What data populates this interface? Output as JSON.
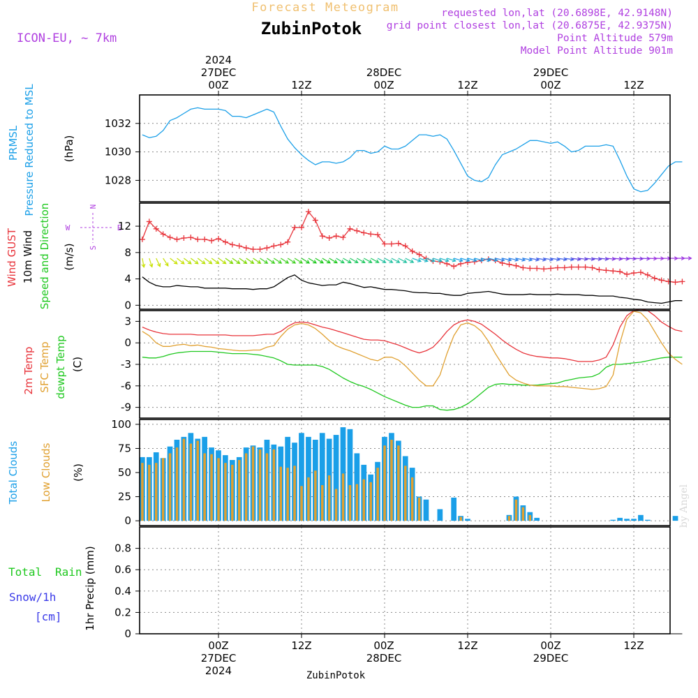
{
  "header": {
    "title": "Forecast Meteogram",
    "location": "ZubinPotok",
    "model": "ICON-EU, ~ 7km",
    "requested": "requested lon,lat (20.6898E, 42.9148N)",
    "grid_point": "grid point closest lon,lat (20.6875E, 42.9375N)",
    "point_altitude": "Point Altitude 579m",
    "model_altitude": "Model Point Altitude 901m",
    "watermark": "by Angel",
    "footer_location": "ZubinPotok"
  },
  "colors": {
    "cyan": "#1a9fe8",
    "red": "#e8333a",
    "orange": "#e0a030",
    "green": "#1ec81e",
    "purple": "#b040e0",
    "blue": "#3a3ae8",
    "title_orange": "#f0c070"
  },
  "time_axis": {
    "hour_ticks": [
      "00Z",
      "12Z",
      "00Z",
      "12Z",
      "00Z",
      "12Z"
    ],
    "date_top": [
      "27DEC",
      "28DEC",
      "29DEC"
    ],
    "year_top": "2024",
    "date_bottom": [
      "27DEC",
      "28DEC",
      "29DEC"
    ],
    "year_bottom": "2024"
  },
  "panels": {
    "pressure": {
      "label1": "PRMSL",
      "label2": "Pressure Reduced to MSL",
      "unit": "(hPa)"
    },
    "wind": {
      "label_gust": "Wind GUST",
      "label_wind": "10m Wind",
      "label_dir": "Speed and Direction",
      "unit": "(m/s)",
      "compass": [
        "N",
        "S",
        "W",
        "E"
      ]
    },
    "temp": {
      "label_2m": "2m Temp",
      "label_sfc": "SFC Temp",
      "label_dew": "dewpt Temp",
      "unit": "(C)"
    },
    "clouds": {
      "label_total": "Total Clouds",
      "label_low": "Low Clouds",
      "unit": "(%)"
    },
    "precip": {
      "label_total": "Total",
      "label_rain": "Rain",
      "label_snow": "Snow/1h",
      "label_cm": "[cm]",
      "unit": "1hr Precip (mm)"
    }
  },
  "chart_data": [
    {
      "type": "line",
      "title": "PRMSL Pressure Reduced to MSL",
      "ylabel": "(hPa)",
      "x_hours_from_00Z_27DEC": [
        -11,
        -10,
        -9,
        -8,
        -7,
        -6,
        -5,
        -4,
        -3,
        -2,
        -1,
        0,
        1,
        2,
        3,
        4,
        5,
        6,
        7,
        8,
        9,
        10,
        11,
        12,
        13,
        14,
        15,
        16,
        17,
        18,
        19,
        20,
        21,
        22,
        23,
        24,
        25,
        26,
        27,
        28,
        29,
        30,
        31,
        32,
        33,
        34,
        35,
        36,
        37,
        38,
        39,
        40,
        41,
        42,
        43,
        44,
        45,
        46,
        47,
        48,
        49,
        50,
        51,
        52,
        53,
        54,
        55,
        56,
        57,
        58,
        59,
        60,
        61,
        62,
        63,
        64,
        65,
        66,
        67
      ],
      "series": [
        {
          "name": "PRMSL",
          "values": [
            1031.2,
            1031.0,
            1031.1,
            1031.5,
            1032.2,
            1032.4,
            1032.7,
            1033.0,
            1033.1,
            1033.0,
            1033.0,
            1033.0,
            1032.9,
            1032.5,
            1032.5,
            1032.4,
            1032.6,
            1032.8,
            1033.0,
            1032.8,
            1031.8,
            1030.9,
            1030.3,
            1029.8,
            1029.4,
            1029.1,
            1029.3,
            1029.3,
            1029.2,
            1029.3,
            1029.6,
            1030.1,
            1030.1,
            1029.9,
            1030.0,
            1030.4,
            1030.2,
            1030.2,
            1030.4,
            1030.8,
            1031.2,
            1031.2,
            1031.1,
            1031.2,
            1030.9,
            1030.1,
            1029.2,
            1028.3,
            1028.0,
            1027.9,
            1028.2,
            1029.1,
            1029.8,
            1030.0,
            1030.2,
            1030.5,
            1030.8,
            1030.8,
            1030.7,
            1030.6,
            1030.7,
            1030.4,
            1030.0,
            1030.1,
            1030.4,
            1030.4,
            1030.4,
            1030.5,
            1030.4,
            1029.4,
            1028.3,
            1027.4,
            1027.2,
            1027.3,
            1027.8,
            1028.4,
            1029.0,
            1029.3,
            1029.3
          ]
        }
      ],
      "ylim": [
        1026.5,
        1034.0
      ],
      "yticks": [
        1028,
        1030,
        1032
      ]
    },
    {
      "type": "line",
      "title": "Wind GUST / 10m Wind Speed and Direction",
      "ylabel": "(m/s)",
      "series": [
        {
          "name": "Wind GUST",
          "values": [
            10.0,
            12.7,
            11.6,
            10.8,
            10.3,
            10.0,
            10.2,
            10.3,
            10.0,
            10.0,
            9.8,
            10.1,
            9.6,
            9.2,
            9.0,
            8.7,
            8.5,
            8.5,
            8.7,
            9.0,
            9.2,
            9.6,
            11.8,
            11.8,
            14.2,
            12.9,
            10.5,
            10.2,
            10.5,
            10.3,
            11.6,
            11.3,
            11.0,
            10.8,
            10.7,
            9.3,
            9.3,
            9.4,
            9.0,
            8.2,
            7.7,
            7.1,
            6.7,
            6.6,
            6.3,
            5.9,
            6.3,
            6.5,
            6.6,
            6.8,
            7.0,
            6.8,
            6.4,
            6.2,
            6.0,
            5.7,
            5.6,
            5.6,
            5.5,
            5.6,
            5.7,
            5.7,
            5.8,
            5.8,
            5.8,
            5.7,
            5.4,
            5.3,
            5.2,
            5.1,
            4.7,
            4.9,
            5.0,
            4.6,
            4.1,
            3.8,
            3.6,
            3.5,
            3.6
          ]
        },
        {
          "name": "10m Wind",
          "values": [
            4.3,
            3.5,
            3.0,
            2.8,
            2.8,
            3.0,
            2.9,
            2.8,
            2.8,
            2.6,
            2.6,
            2.6,
            2.6,
            2.5,
            2.5,
            2.5,
            2.4,
            2.5,
            2.5,
            2.8,
            3.5,
            4.2,
            4.6,
            3.8,
            3.4,
            3.2,
            3.0,
            3.1,
            3.1,
            3.5,
            3.3,
            3.0,
            2.7,
            2.8,
            2.6,
            2.4,
            2.4,
            2.3,
            2.2,
            2.0,
            1.9,
            1.9,
            1.8,
            1.8,
            1.6,
            1.5,
            1.5,
            1.8,
            1.9,
            2.0,
            2.1,
            1.9,
            1.7,
            1.6,
            1.6,
            1.6,
            1.7,
            1.6,
            1.6,
            1.6,
            1.7,
            1.6,
            1.6,
            1.6,
            1.5,
            1.5,
            1.4,
            1.4,
            1.4,
            1.2,
            1.1,
            0.9,
            0.8,
            0.5,
            0.4,
            0.3,
            0.5,
            0.7,
            0.7
          ]
        }
      ],
      "ylim": [
        -0.6,
        15.5
      ],
      "yticks": [
        0,
        4,
        8,
        12
      ]
    },
    {
      "type": "line",
      "title": "2m Temp / SFC Temp / dewpt Temp",
      "ylabel": "(C)",
      "series": [
        {
          "name": "2m Temp",
          "values": [
            2.2,
            1.8,
            1.5,
            1.3,
            1.2,
            1.2,
            1.2,
            1.2,
            1.1,
            1.1,
            1.1,
            1.1,
            1.1,
            1.0,
            1.0,
            1.0,
            1.0,
            1.1,
            1.2,
            1.2,
            1.6,
            2.3,
            2.8,
            2.9,
            2.8,
            2.5,
            2.2,
            2.0,
            1.7,
            1.4,
            1.1,
            0.8,
            0.5,
            0.4,
            0.4,
            0.3,
            0.0,
            -0.3,
            -0.7,
            -1.1,
            -1.4,
            -1.1,
            -0.6,
            0.4,
            1.6,
            2.5,
            3.0,
            3.2,
            3.0,
            2.6,
            1.9,
            1.2,
            0.4,
            -0.3,
            -0.9,
            -1.4,
            -1.7,
            -1.9,
            -2.0,
            -2.1,
            -2.1,
            -2.2,
            -2.4,
            -2.6,
            -2.6,
            -2.6,
            -2.4,
            -2.0,
            -0.3,
            2.2,
            3.8,
            4.5,
            4.7,
            4.5,
            3.8,
            2.9,
            2.3,
            1.8,
            1.6
          ]
        },
        {
          "name": "SFC Temp",
          "values": [
            1.6,
            1.0,
            0.0,
            -0.5,
            -0.5,
            -0.3,
            -0.2,
            -0.4,
            -0.3,
            -0.5,
            -0.6,
            -0.8,
            -0.9,
            -1.0,
            -1.1,
            -1.1,
            -1.0,
            -1.0,
            -0.6,
            -0.4,
            0.9,
            1.9,
            2.5,
            2.7,
            2.5,
            2.0,
            1.2,
            0.3,
            -0.4,
            -0.8,
            -1.1,
            -1.5,
            -1.9,
            -2.3,
            -2.5,
            -2.0,
            -2.0,
            -2.4,
            -3.2,
            -4.2,
            -5.2,
            -6.0,
            -6.0,
            -4.5,
            -1.5,
            1.0,
            2.5,
            2.8,
            2.4,
            1.6,
            0.2,
            -1.5,
            -3.0,
            -4.5,
            -5.2,
            -5.6,
            -5.9,
            -6.0,
            -6.0,
            -6.0,
            -6.1,
            -6.1,
            -6.2,
            -6.3,
            -6.4,
            -6.5,
            -6.4,
            -6.1,
            -4.5,
            0.0,
            3.3,
            4.4,
            4.2,
            3.2,
            1.6,
            0.0,
            -1.4,
            -2.3,
            -3.0
          ]
        },
        {
          "name": "dewpt Temp",
          "values": [
            -2.0,
            -2.1,
            -2.1,
            -1.9,
            -1.6,
            -1.4,
            -1.3,
            -1.2,
            -1.2,
            -1.2,
            -1.2,
            -1.3,
            -1.4,
            -1.5,
            -1.5,
            -1.5,
            -1.6,
            -1.7,
            -1.9,
            -2.1,
            -2.5,
            -3.0,
            -3.1,
            -3.1,
            -3.1,
            -3.1,
            -3.3,
            -3.7,
            -4.3,
            -4.9,
            -5.4,
            -5.8,
            -6.1,
            -6.5,
            -7.0,
            -7.5,
            -7.9,
            -8.3,
            -8.7,
            -9.0,
            -9.0,
            -8.8,
            -8.8,
            -9.3,
            -9.4,
            -9.3,
            -9.0,
            -8.5,
            -7.8,
            -7.0,
            -6.2,
            -5.8,
            -5.7,
            -5.8,
            -5.8,
            -5.9,
            -5.9,
            -5.9,
            -5.8,
            -5.7,
            -5.6,
            -5.3,
            -5.1,
            -4.9,
            -4.8,
            -4.7,
            -4.3,
            -3.4,
            -3.0,
            -3.0,
            -2.9,
            -2.8,
            -2.7,
            -2.5,
            -2.3,
            -2.1,
            -2.0,
            -2.0,
            -2.0
          ]
        }
      ],
      "ylim": [
        -10.5,
        4.5
      ],
      "yticks": [
        -9,
        -6,
        -3,
        0,
        3
      ]
    },
    {
      "type": "bar",
      "title": "Total Clouds / Low Clouds",
      "ylabel": "(%)",
      "series": [
        {
          "name": "Total Clouds",
          "values": [
            66,
            66,
            71,
            65,
            77,
            84,
            87,
            91,
            85,
            87,
            76,
            73,
            68,
            63,
            66,
            76,
            78,
            76,
            84,
            79,
            77,
            87,
            81,
            91,
            87,
            84,
            91,
            85,
            89,
            97,
            95,
            70,
            58,
            48,
            61,
            87,
            91,
            83,
            67,
            55,
            25,
            22,
            0,
            12,
            0,
            24,
            5,
            2,
            0,
            0,
            0,
            0,
            0,
            6,
            25,
            16,
            9,
            3,
            0,
            0,
            0,
            0,
            0,
            0,
            0,
            0,
            0,
            0,
            1,
            3,
            2,
            2,
            6,
            1,
            0,
            0,
            0,
            5,
            0
          ]
        },
        {
          "name": "Low Clouds",
          "values": [
            60,
            58,
            60,
            65,
            70,
            76,
            85,
            80,
            83,
            70,
            69,
            65,
            60,
            58,
            63,
            70,
            77,
            74,
            70,
            74,
            56,
            55,
            57,
            36,
            45,
            52,
            37,
            47,
            33,
            49,
            37,
            38,
            43,
            40,
            55,
            78,
            84,
            78,
            57,
            45,
            24,
            0,
            0,
            0,
            0,
            0,
            4,
            0,
            0,
            0,
            0,
            0,
            0,
            5,
            22,
            14,
            6,
            0,
            0,
            0,
            0,
            0,
            0,
            0,
            0,
            0,
            0,
            0,
            0,
            0,
            0,
            0,
            0,
            0,
            0,
            0,
            0,
            0,
            0
          ]
        }
      ],
      "ylim": [
        -5,
        105
      ],
      "yticks": [
        0,
        25,
        50,
        75,
        100
      ]
    },
    {
      "type": "bar",
      "title": "1hr Precip (mm)",
      "ylabel": "1hr Precip (mm)",
      "series": [
        {
          "name": "Total Rain",
          "values": [
            0,
            0,
            0,
            0,
            0,
            0,
            0,
            0,
            0,
            0,
            0,
            0,
            0,
            0,
            0,
            0,
            0,
            0,
            0,
            0,
            0,
            0,
            0,
            0,
            0,
            0,
            0,
            0,
            0,
            0,
            0,
            0,
            0,
            0,
            0,
            0,
            0,
            0,
            0,
            0,
            0,
            0,
            0,
            0,
            0,
            0,
            0,
            0,
            0,
            0,
            0,
            0,
            0,
            0,
            0,
            0,
            0,
            0,
            0,
            0,
            0,
            0,
            0,
            0,
            0,
            0,
            0,
            0,
            0,
            0,
            0,
            0,
            0,
            0,
            0,
            0,
            0,
            0,
            0
          ]
        }
      ],
      "ylim": [
        0,
        1.0
      ],
      "yticks": [
        0,
        0.2,
        0.4,
        0.6,
        0.8
      ]
    }
  ]
}
